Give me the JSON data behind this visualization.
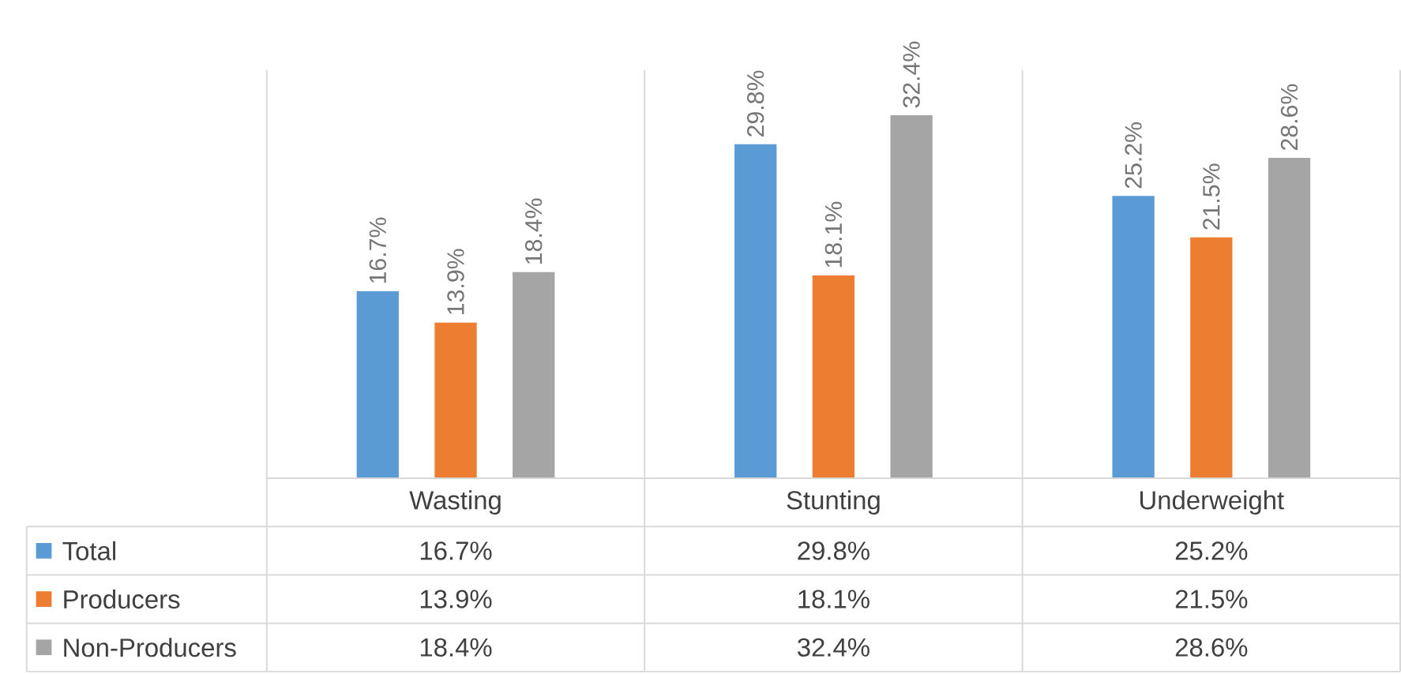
{
  "chart_data": {
    "type": "bar",
    "categories": [
      "Wasting",
      "Stunting",
      "Underweight"
    ],
    "series": [
      {
        "name": "Total",
        "color": "#5b9bd5",
        "values": [
          16.7,
          29.8,
          25.2
        ],
        "value_labels": [
          "16.7%",
          "29.8%",
          "25.2%"
        ]
      },
      {
        "name": "Producers",
        "color": "#ed7d31",
        "values": [
          13.9,
          18.1,
          21.5
        ],
        "value_labels": [
          "13.9%",
          "18.1%",
          "21.5%"
        ]
      },
      {
        "name": "Non-Producers",
        "color": "#a5a5a5",
        "values": [
          18.4,
          32.4,
          28.6
        ],
        "value_labels": [
          "18.4%",
          "32.4%",
          "28.6%"
        ]
      }
    ],
    "legend": "bottom",
    "grid": false
  }
}
